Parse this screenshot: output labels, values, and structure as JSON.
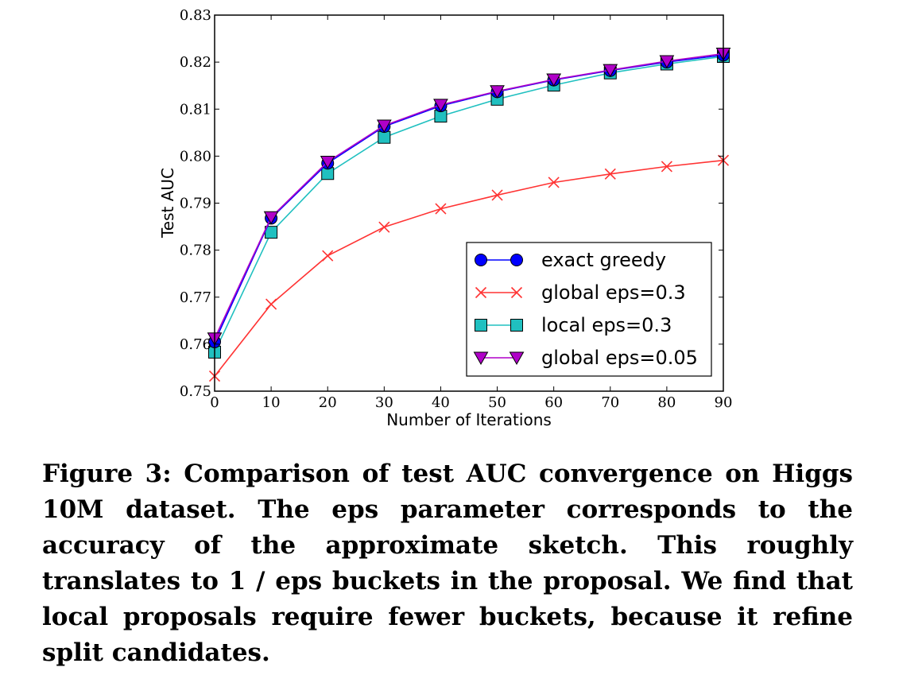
{
  "chart_data": {
    "type": "line",
    "title": "",
    "xlabel": "Number of Iterations",
    "ylabel": "Test AUC",
    "xlim": [
      0,
      90
    ],
    "ylim": [
      0.75,
      0.83
    ],
    "xticks": [
      "0",
      "10",
      "20",
      "30",
      "40",
      "50",
      "60",
      "70",
      "80",
      "90"
    ],
    "yticks": [
      "0.75",
      "0.76",
      "0.77",
      "0.78",
      "0.79",
      "0.80",
      "0.81",
      "0.82",
      "0.83"
    ],
    "grid": false,
    "legend_position": "bottom-right",
    "x": [
      0,
      10,
      20,
      30,
      40,
      50,
      60,
      70,
      80,
      90
    ],
    "series": [
      {
        "name": "exact greedy",
        "color": "#0000ff",
        "marker": "circle",
        "values": [
          0.7605,
          0.7868,
          0.7985,
          0.8063,
          0.8107,
          0.8137,
          0.8162,
          0.8182,
          0.82,
          0.8215
        ]
      },
      {
        "name": "global eps=0.3",
        "color": "#ff3333",
        "marker": "x",
        "values": [
          0.7532,
          0.7685,
          0.7788,
          0.7849,
          0.7888,
          0.7917,
          0.7944,
          0.7962,
          0.7978,
          0.7991
        ]
      },
      {
        "name": "local eps=0.3",
        "color": "#20c0c0",
        "marker": "square",
        "values": [
          0.7583,
          0.7838,
          0.7963,
          0.804,
          0.8085,
          0.8121,
          0.8151,
          0.8177,
          0.8196,
          0.8212
        ]
      },
      {
        "name": "global eps=0.05",
        "color": "#b000c8",
        "marker": "triangle-down",
        "values": [
          0.7612,
          0.787,
          0.7988,
          0.8065,
          0.8109,
          0.8138,
          0.8163,
          0.8183,
          0.8202,
          0.8218
        ]
      }
    ]
  },
  "caption": [
    "Figure 3: Comparison of test AUC convergence on",
    "Higgs 10M dataset. The eps parameter corresponds",
    "to the accuracy of the approximate sketch.  This",
    "roughly translates to 1 / eps buckets in the proposal.",
    "We find that local proposals require fewer buckets,",
    "because it refine split candidates."
  ]
}
